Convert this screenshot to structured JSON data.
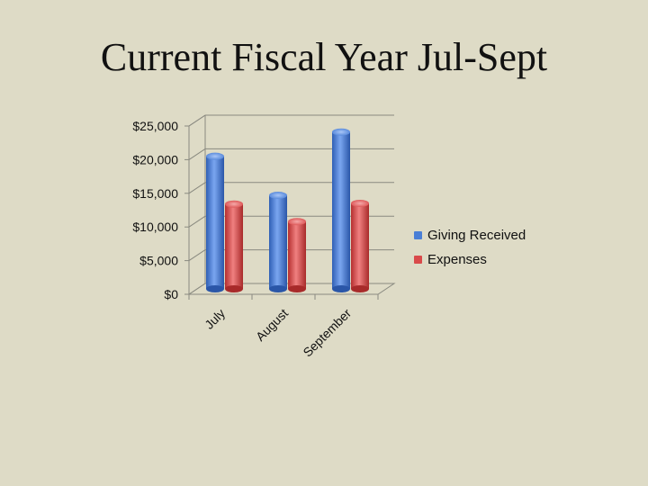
{
  "slide": {
    "title": "Current Fiscal Year Jul-Sept"
  },
  "chart_data": {
    "type": "bar",
    "title": "",
    "xlabel": "",
    "ylabel": "",
    "categories": [
      "July",
      "August",
      "September"
    ],
    "series": [
      {
        "name": "Giving Received",
        "values": [
          19700,
          13900,
          23300
        ],
        "color": "#4a7fd6"
      },
      {
        "name": "Expenses",
        "values": [
          12600,
          10000,
          12700
        ],
        "color": "#d94a4a"
      }
    ],
    "ylim": [
      0,
      25000
    ],
    "yticks": [
      0,
      5000,
      10000,
      15000,
      20000,
      25000
    ],
    "ytick_labels": [
      "$0",
      "$5,000",
      "$10,000",
      "$15,000",
      "$20,000",
      "$25,000"
    ],
    "grid": true,
    "legend": "right"
  }
}
